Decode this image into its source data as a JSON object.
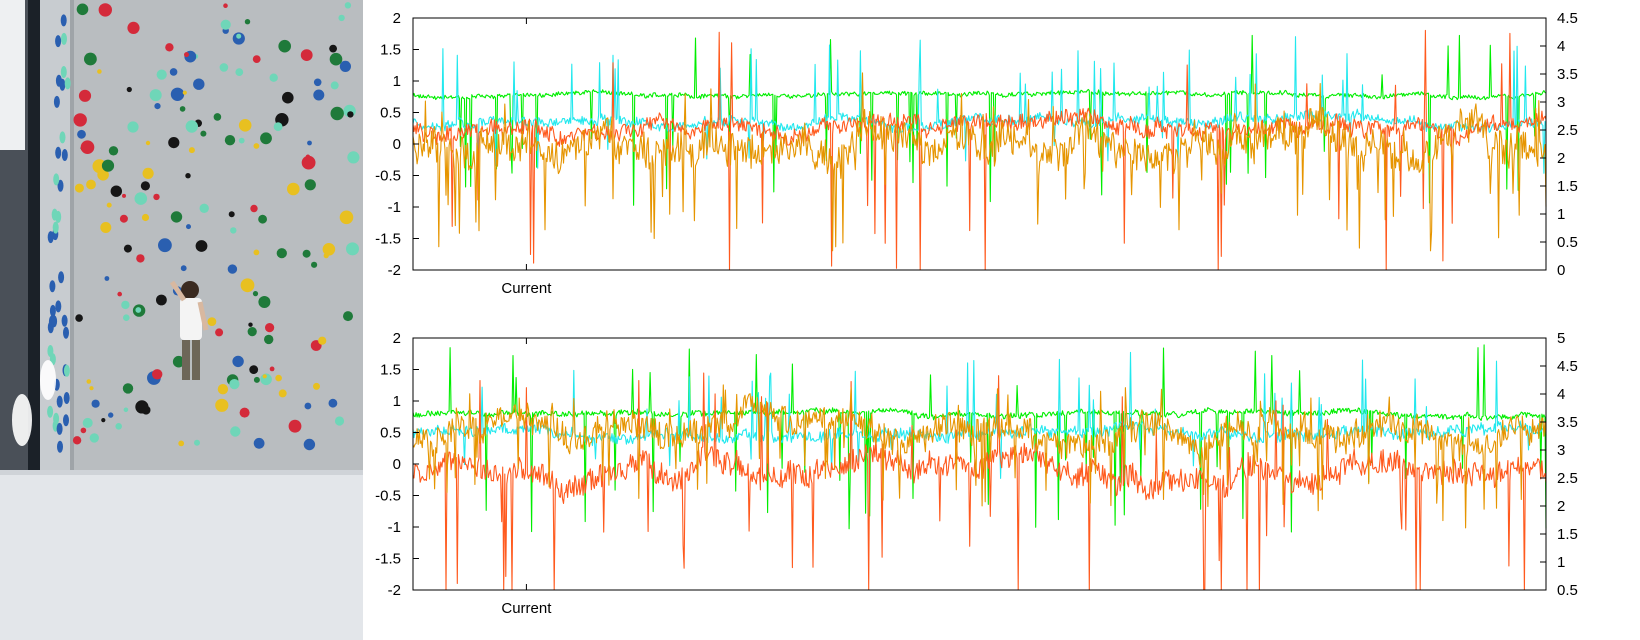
{
  "photo": {
    "description_icon": "climbing-wall-photo"
  },
  "chart_data": [
    {
      "type": "line",
      "y_left_ticks": [
        "2",
        "1.5",
        "1",
        "0.5",
        "0",
        "-0.5",
        "-1",
        "-1.5",
        "-2"
      ],
      "y_right_ticks": [
        "4.5",
        "4",
        "3.5",
        "3",
        "2.5",
        "2",
        "1.5",
        "1",
        "0.5",
        "0"
      ],
      "ylim_left": [
        -2,
        2
      ],
      "ylim_right": [
        0,
        4.5
      ],
      "x_marker": {
        "label": "Current",
        "index": 110
      },
      "n_points": 1100,
      "grid": false,
      "series": [
        {
          "color": "#00ee00",
          "axis": "left",
          "mean": 0.78,
          "spread": 0.08,
          "spike_rate": 0.035,
          "spike_amp": -1.2,
          "seed": 11
        },
        {
          "color": "#22e8ee",
          "axis": "left",
          "mean": 0.35,
          "spread": 0.18,
          "spike_rate": 0.03,
          "spike_amp": 0.9,
          "seed": 23
        },
        {
          "color": "#ff5a1e",
          "axis": "left",
          "mean": 0.3,
          "spread": 0.3,
          "spike_rate": 0.025,
          "spike_amp": -1.8,
          "seed": 37
        },
        {
          "color": "#e69500",
          "axis": "right",
          "mean": 2.2,
          "spread": 0.7,
          "spike_rate": 0.05,
          "spike_amp": -1.1,
          "seed": 51
        }
      ]
    },
    {
      "type": "line",
      "y_left_ticks": [
        "2",
        "1.5",
        "1",
        "0.5",
        "0",
        "-0.5",
        "-1",
        "-1.5",
        "-2"
      ],
      "y_right_ticks": [
        "5",
        "4.5",
        "4",
        "3.5",
        "3",
        "2.5",
        "2",
        "1.5",
        "1",
        "0.5"
      ],
      "ylim_left": [
        -2,
        2
      ],
      "ylim_right": [
        0.5,
        5
      ],
      "x_marker": {
        "label": "Current",
        "index": 110
      },
      "n_points": 1100,
      "grid": false,
      "series": [
        {
          "color": "#00ee00",
          "axis": "left",
          "mean": 0.8,
          "spread": 0.1,
          "spike_rate": 0.035,
          "spike_amp": -1.3,
          "seed": 61
        },
        {
          "color": "#22e8ee",
          "axis": "left",
          "mean": 0.5,
          "spread": 0.2,
          "spike_rate": 0.03,
          "spike_amp": 0.8,
          "seed": 73
        },
        {
          "color": "#ff5a1e",
          "axis": "left",
          "mean": -0.1,
          "spread": 0.45,
          "spike_rate": 0.03,
          "spike_amp": -1.6,
          "seed": 89
        },
        {
          "color": "#e69500",
          "axis": "right",
          "mean": 3.3,
          "spread": 0.55,
          "spike_rate": 0.05,
          "spike_amp": -0.9,
          "seed": 97
        }
      ]
    }
  ]
}
